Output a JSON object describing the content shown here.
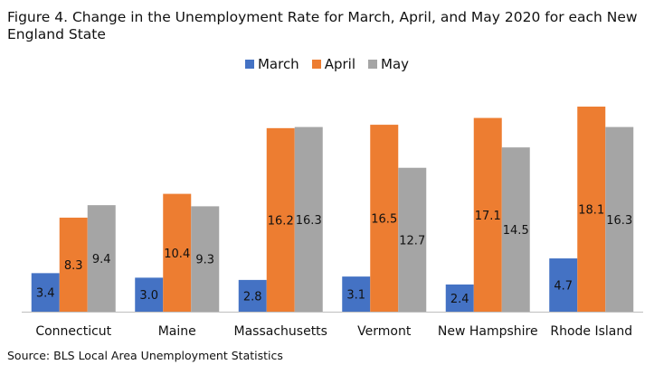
{
  "title": "Figure 4. Change in the Unemployment Rate for March, April, and May 2020 for each New England State",
  "source": "Source: BLS Local Area Unemployment Statistics",
  "chart_data": {
    "type": "bar",
    "title": "Figure 4. Change in the Unemployment Rate for March, April, and May 2020 for each New England State",
    "categories": [
      "Connecticut",
      "Maine",
      "Massachusetts",
      "Vermont",
      "New Hampshire",
      "Rhode Island"
    ],
    "series": [
      {
        "name": "March",
        "color": "#4472C4",
        "values": [
          3.4,
          3.0,
          2.8,
          3.1,
          2.4,
          4.7
        ]
      },
      {
        "name": "April",
        "color": "#ED7D31",
        "values": [
          8.3,
          10.4,
          16.2,
          16.5,
          17.1,
          18.1
        ]
      },
      {
        "name": "May",
        "color": "#A5A5A5",
        "values": [
          9.4,
          9.3,
          16.3,
          12.7,
          14.5,
          16.3
        ]
      }
    ],
    "xlabel": "",
    "ylabel": "",
    "ylim": [
      0,
      18.5
    ],
    "grid": false,
    "legend_position": "top-center",
    "data_labels": true
  }
}
